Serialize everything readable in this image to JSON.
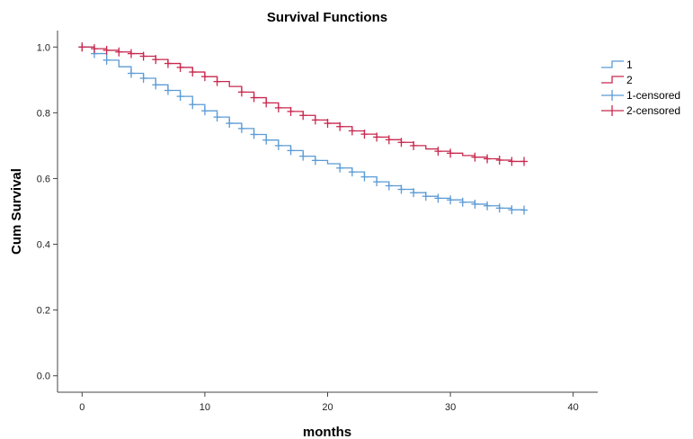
{
  "chart_data": {
    "type": "line",
    "title": "Survival Functions",
    "xlabel": "months",
    "ylabel": "Cum Survival",
    "xlim": [
      -2,
      42
    ],
    "ylim": [
      -0.05,
      1.05
    ],
    "xticks": [
      0,
      10,
      20,
      30,
      40
    ],
    "yticks": [
      0.0,
      0.2,
      0.4,
      0.6,
      0.8,
      1.0
    ],
    "grid": false,
    "legend_position": "top-right",
    "step": true,
    "series": [
      {
        "name": "1",
        "color": "#5b9bd5",
        "x": [
          0,
          1,
          2,
          3,
          4,
          5,
          6,
          7,
          8,
          9,
          10,
          11,
          12,
          13,
          14,
          15,
          16,
          17,
          18,
          19,
          20,
          21,
          22,
          23,
          24,
          25,
          26,
          27,
          28,
          29,
          30,
          31,
          32,
          33,
          34,
          35,
          36
        ],
        "y": [
          1.0,
          0.98,
          0.96,
          0.94,
          0.92,
          0.905,
          0.885,
          0.868,
          0.85,
          0.825,
          0.806,
          0.787,
          0.768,
          0.752,
          0.734,
          0.717,
          0.7,
          0.685,
          0.668,
          0.655,
          0.645,
          0.632,
          0.62,
          0.605,
          0.59,
          0.578,
          0.567,
          0.557,
          0.546,
          0.54,
          0.535,
          0.528,
          0.522,
          0.517,
          0.51,
          0.505,
          0.504
        ],
        "censored_x": [
          0,
          1,
          2,
          4,
          5,
          6,
          7,
          8,
          9,
          10,
          11,
          12,
          13,
          14,
          15,
          16,
          17,
          18,
          19,
          21,
          22,
          23,
          24,
          25,
          26,
          27,
          28,
          29,
          30,
          31,
          32,
          33,
          34,
          35,
          36
        ],
        "censored_y": [
          1.0,
          0.98,
          0.96,
          0.92,
          0.905,
          0.885,
          0.868,
          0.85,
          0.825,
          0.806,
          0.787,
          0.768,
          0.752,
          0.734,
          0.717,
          0.7,
          0.685,
          0.668,
          0.655,
          0.632,
          0.62,
          0.605,
          0.59,
          0.578,
          0.567,
          0.557,
          0.546,
          0.54,
          0.535,
          0.528,
          0.522,
          0.517,
          0.51,
          0.505,
          0.504
        ]
      },
      {
        "name": "2",
        "color": "#c8284e",
        "x": [
          0,
          1,
          2,
          3,
          4,
          5,
          6,
          7,
          8,
          9,
          10,
          11,
          12,
          13,
          14,
          15,
          16,
          17,
          18,
          19,
          20,
          21,
          22,
          23,
          24,
          25,
          26,
          27,
          28,
          29,
          30,
          31,
          32,
          33,
          34,
          35,
          36
        ],
        "y": [
          1.0,
          0.995,
          0.99,
          0.985,
          0.98,
          0.972,
          0.962,
          0.95,
          0.938,
          0.924,
          0.91,
          0.895,
          0.88,
          0.863,
          0.846,
          0.83,
          0.815,
          0.804,
          0.792,
          0.778,
          0.768,
          0.758,
          0.745,
          0.735,
          0.726,
          0.718,
          0.71,
          0.7,
          0.69,
          0.683,
          0.677,
          0.67,
          0.665,
          0.66,
          0.656,
          0.652,
          0.652
        ],
        "censored_x": [
          0,
          1,
          2,
          3,
          4,
          5,
          6,
          7,
          8,
          9,
          10,
          11,
          13,
          14,
          15,
          16,
          17,
          18,
          19,
          20,
          21,
          22,
          23,
          24,
          25,
          26,
          27,
          29,
          30,
          32,
          33,
          34,
          35,
          36
        ],
        "censored_y": [
          1.0,
          0.995,
          0.99,
          0.985,
          0.98,
          0.972,
          0.962,
          0.95,
          0.938,
          0.924,
          0.91,
          0.895,
          0.863,
          0.846,
          0.83,
          0.815,
          0.804,
          0.792,
          0.778,
          0.768,
          0.758,
          0.745,
          0.735,
          0.726,
          0.718,
          0.71,
          0.7,
          0.683,
          0.677,
          0.665,
          0.66,
          0.656,
          0.652,
          0.652
        ]
      }
    ],
    "legend": [
      {
        "label": "1",
        "kind": "step",
        "color": "#5b9bd5"
      },
      {
        "label": "2",
        "kind": "step",
        "color": "#c8284e"
      },
      {
        "label": "1-censored",
        "kind": "censor",
        "color": "#5b9bd5"
      },
      {
        "label": "2-censored",
        "kind": "censor",
        "color": "#c8284e"
      }
    ]
  }
}
